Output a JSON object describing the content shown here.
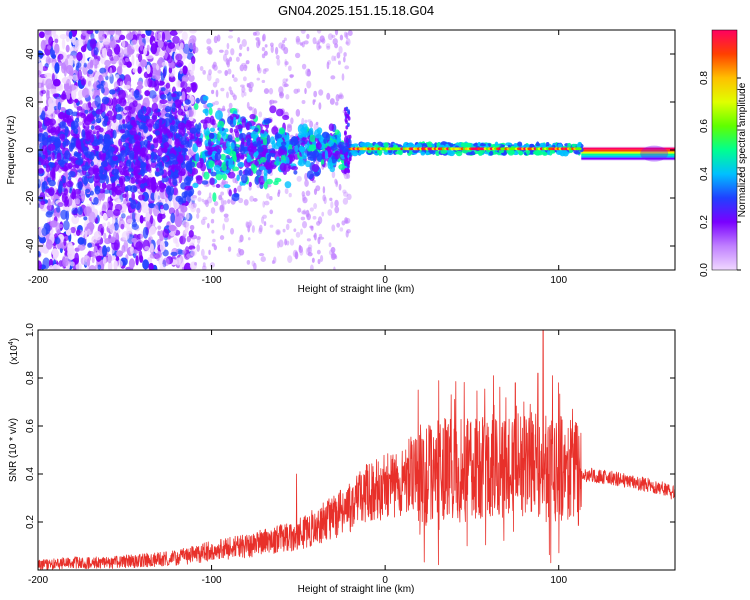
{
  "figure": {
    "title": "GN04.2025.151.15.18.G04"
  },
  "chart_data": [
    {
      "type": "heatmap",
      "name": "spectrogram",
      "xlabel": "Height of straight line (km)",
      "ylabel": "Frequency (Hz)",
      "xlim": [
        -200,
        167
      ],
      "ylim": [
        -50,
        50
      ],
      "xticks": [
        "-200",
        "-100",
        "0",
        "100"
      ],
      "xtick_values": [
        -200,
        -100,
        0,
        100
      ],
      "yticks": [
        "-40",
        "-20",
        "0",
        "20",
        "40"
      ],
      "ytick_values": [
        -40,
        -20,
        0,
        20,
        40
      ],
      "colorbar": {
        "label": "Normalized spectral amplitude",
        "ticks": [
          "0.0",
          "0.2",
          "0.4",
          "0.6",
          "0.8"
        ],
        "tick_values": [
          0.0,
          0.2,
          0.4,
          0.6,
          0.8
        ],
        "range": [
          0,
          1
        ],
        "colors": [
          "#f0d8ff",
          "#c080ff",
          "#7a00ff",
          "#2040ff",
          "#00c0ff",
          "#00ff90",
          "#60ff00",
          "#e0ff00",
          "#ffc000",
          "#ff4000",
          "#ff0060"
        ]
      },
      "features": {
        "noise_region_km": [
          -200,
          -110
        ],
        "sparse_noise_region_km": [
          -110,
          -20
        ],
        "converging_region_km": [
          -110,
          -20
        ],
        "line_region_km": [
          -20,
          113
        ],
        "line_frequency_hz": 0.5,
        "flat_band_region_km": [
          113,
          167
        ],
        "flat_band_frequency_hz": -1.5
      },
      "grid": false
    },
    {
      "type": "line",
      "name": "snr",
      "xlabel": "Height of straight line (km)",
      "ylabel": "SNR (10 * v/v)",
      "multiplier_prefix": "(x10",
      "multiplier_exponent": "4",
      "multiplier_suffix": ")",
      "xlim": [
        -200,
        167
      ],
      "ylim": [
        0,
        1.0
      ],
      "xticks": [
        "-200",
        "-100",
        "0",
        "100"
      ],
      "xtick_values": [
        -200,
        -100,
        0,
        100
      ],
      "yticks": [
        "0.2",
        "0.4",
        "0.6",
        "0.8",
        "1.0"
      ],
      "ytick_values": [
        0.2,
        0.4,
        0.6,
        0.8,
        1.0
      ],
      "color": "#e8302a",
      "grid": false,
      "series": [
        {
          "x": [
            -200,
            -180,
            -160,
            -140,
            -120,
            -100,
            -80,
            -60,
            -50,
            -40,
            -30,
            -20,
            -10,
            0,
            10,
            18,
            25,
            35,
            45,
            55,
            65,
            75,
            85,
            95,
            105,
            113,
            125,
            140,
            155,
            167
          ],
          "y": [
            0.02,
            0.03,
            0.03,
            0.04,
            0.05,
            0.08,
            0.1,
            0.13,
            0.15,
            0.18,
            0.22,
            0.26,
            0.32,
            0.35,
            0.37,
            0.42,
            0.4,
            0.43,
            0.42,
            0.43,
            0.43,
            0.44,
            0.44,
            0.42,
            0.42,
            0.4,
            0.39,
            0.37,
            0.35,
            0.32
          ]
        }
      ],
      "spikes": [
        {
          "x": -51,
          "y": 0.4
        },
        {
          "x": 19,
          "y": 0.75
        },
        {
          "x": 38,
          "y": 0.73
        },
        {
          "x": 75,
          "y": 0.78
        },
        {
          "x": 88,
          "y": 0.82
        },
        {
          "x": 91,
          "y": 1.0
        },
        {
          "x": 100,
          "y": 0.78
        },
        {
          "x": 108,
          "y": 0.67
        }
      ]
    }
  ]
}
